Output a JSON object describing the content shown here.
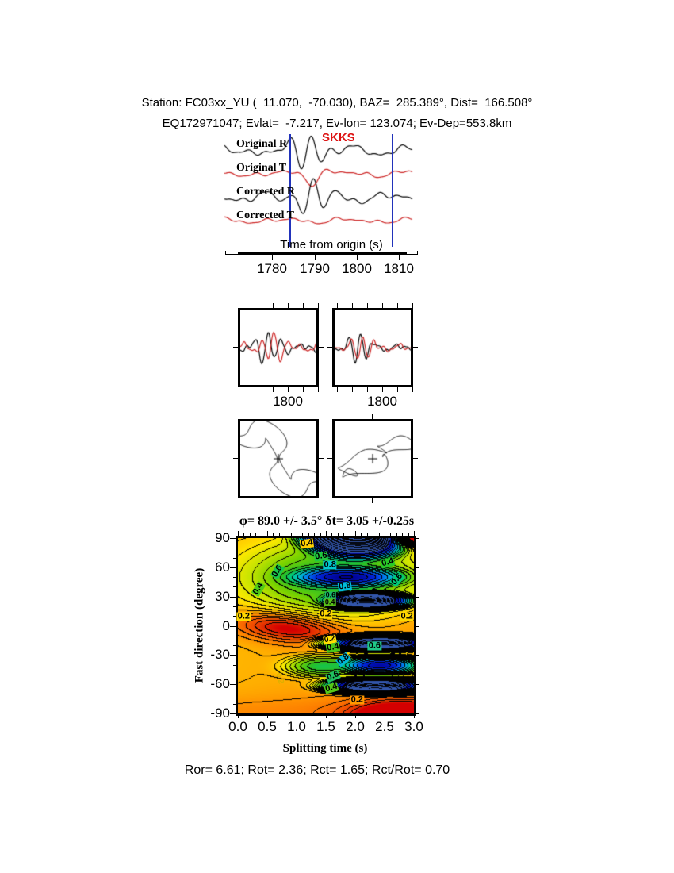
{
  "header": {
    "line1": "Station: FC03xx_YU (  11.070,  -70.030), BAZ=  285.389°, Dist=  166.508°",
    "line2": "EQ172971047; Evlat=  -7.217, Ev-lon= 123.074; Ev-Dep=553.8km"
  },
  "colors": {
    "trace_black": "#000000",
    "trace_red": "#cc2222",
    "phase_red": "#dd1111",
    "window_blue": "#2233bb"
  },
  "seismogram": {
    "phase_label": "SKKS",
    "traces": [
      {
        "label": "Original R"
      },
      {
        "label": "Original T"
      },
      {
        "label": "Corrected R"
      },
      {
        "label": "Corrected T"
      }
    ],
    "time_axis": {
      "title": "Time from origin (s)",
      "ticks": [
        "1780",
        "1790",
        "1800",
        "1810"
      ]
    }
  },
  "pair_panels": {
    "axis_tick": "1800"
  },
  "stats_line": "Ror= 6.61; Rot= 2.36; Rct= 1.65; Rct/Rot= 0.70",
  "chart_data": {
    "type": "heatmap",
    "title": "φ= 89.0 +/- 3.5° δt= 3.05 +/-0.25s",
    "xlabel": "Splitting time (s)",
    "ylabel": "Fast direction (degree)",
    "xlim": [
      0.0,
      3.0
    ],
    "ylim": [
      -90,
      90
    ],
    "x_ticks": [
      "0.0",
      "0.5",
      "1.0",
      "1.5",
      "2.0",
      "2.5",
      "3.0"
    ],
    "y_ticks": [
      "90",
      "60",
      "30",
      "0",
      "-30",
      "-60",
      "-90"
    ],
    "best_fit": {
      "phi_deg": 89.0,
      "phi_err": 3.5,
      "dt_s": 3.05,
      "dt_err": 0.25
    },
    "quality": {
      "Ror": 6.61,
      "Rot": 2.36,
      "Rct": 1.65,
      "Rct_over_Rot": 0.7
    },
    "minima": [
      {
        "x": 1.85,
        "y": 50,
        "note": "blue misfit low, elongated"
      },
      {
        "x": 2.42,
        "y": -41,
        "note": "blue misfit low"
      }
    ],
    "maxima": [
      {
        "x": 0.85,
        "y": -3,
        "note": "red misfit high, tilted"
      },
      {
        "x": 3.0,
        "y": 90,
        "note": "red corner"
      },
      {
        "x": 2.75,
        "y": -90,
        "note": "red corner"
      }
    ],
    "contour_labels": [
      {
        "v": "0.4",
        "x": 1.18,
        "y": 84,
        "r": -8,
        "bg": "#ffd000",
        "s": 11
      },
      {
        "v": "0.6",
        "x": 1.42,
        "y": 71,
        "r": -8,
        "bg": "#20c840",
        "s": 11
      },
      {
        "v": "0.8",
        "x": 1.57,
        "y": 62,
        "r": 0,
        "bg": "#00c8d0",
        "s": 11
      },
      {
        "v": "0.4",
        "x": 2.55,
        "y": 65,
        "r": -15,
        "bg": "#28c828",
        "s": 11
      },
      {
        "v": "0.6",
        "x": 0.68,
        "y": 56,
        "r": -58,
        "bg": "#18c84c",
        "s": 11
      },
      {
        "v": "0.4",
        "x": 0.35,
        "y": 38,
        "r": -58,
        "bg": "#50cc18",
        "s": 11
      },
      {
        "v": "0.6",
        "x": 2.72,
        "y": 48,
        "r": -50,
        "bg": "#00c878",
        "s": 11
      },
      {
        "v": "0.8",
        "x": 1.83,
        "y": 40,
        "r": -8,
        "bg": "#00bcd8",
        "s": 11
      },
      {
        "v": "0.6",
        "x": 1.58,
        "y": 31,
        "r": 0,
        "bg": "#18b868",
        "s": 9
      },
      {
        "v": "0.4",
        "x": 1.57,
        "y": 24,
        "r": 0,
        "bg": "#58c018",
        "s": 9
      },
      {
        "v": "0.2",
        "x": 0.1,
        "y": 9,
        "r": 0,
        "bg": "#ffd800",
        "s": 11
      },
      {
        "v": "0.2",
        "x": 1.5,
        "y": 12,
        "r": 0,
        "bg": "#ffd800",
        "s": 11
      },
      {
        "v": "0.2",
        "x": 2.88,
        "y": 9,
        "r": 0,
        "bg": "#ffd800",
        "s": 11
      },
      {
        "v": "0.2",
        "x": 1.57,
        "y": -14,
        "r": -12,
        "bg": "#ffe000",
        "s": 10
      },
      {
        "v": "0.4",
        "x": 1.62,
        "y": -22,
        "r": -10,
        "bg": "#48c818",
        "s": 11
      },
      {
        "v": "0.6",
        "x": 2.33,
        "y": -21,
        "r": 0,
        "bg": "#20c888",
        "s": 11
      },
      {
        "v": "0.8",
        "x": 1.8,
        "y": -35,
        "r": -38,
        "bg": "#00b8d8",
        "s": 11
      },
      {
        "v": "0.6",
        "x": 1.62,
        "y": -52,
        "r": -22,
        "bg": "#20c060",
        "s": 11
      },
      {
        "v": "0.4",
        "x": 1.6,
        "y": -64,
        "r": -16,
        "bg": "#55c818",
        "s": 11
      },
      {
        "v": "0.2",
        "x": 2.03,
        "y": -76,
        "r": 0,
        "bg": "#ff9800",
        "s": 11
      },
      {
        "v": "0.2",
        "x": 0.7,
        "y": -54,
        "r": 72,
        "bg": null,
        "s": 10
      }
    ]
  }
}
